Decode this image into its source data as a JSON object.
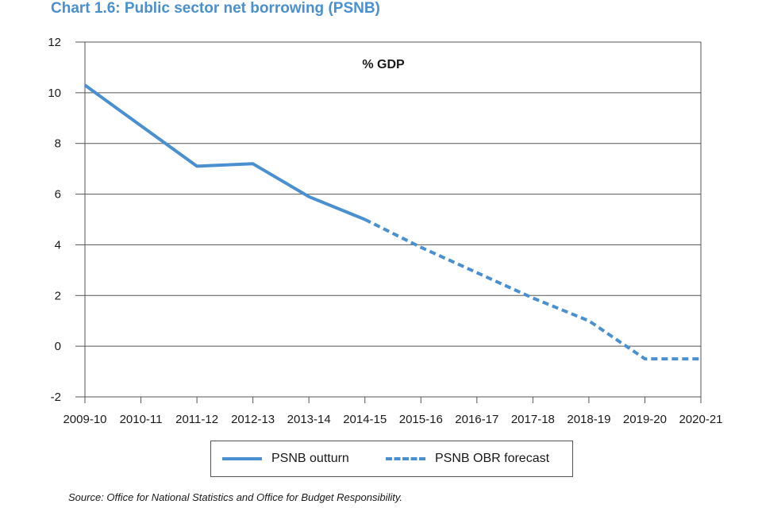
{
  "title": "Chart 1.6: Public sector net borrowing (PSNB)",
  "source": "Source: Office for National Statistics and Office for Budget Responsibility.",
  "colors": {
    "series": "#4a90d0",
    "title": "#4a90d0",
    "grid": "#555555"
  },
  "chart_data": {
    "type": "line",
    "unit_label": "% GDP",
    "categories": [
      "2009-10",
      "2010-11",
      "2011-12",
      "2012-13",
      "2013-14",
      "2014-15",
      "2015-16",
      "2016-17",
      "2017-18",
      "2018-19",
      "2019-20",
      "2020-21"
    ],
    "ylim": [
      -2,
      12
    ],
    "yticks": [
      -2,
      0,
      2,
      4,
      6,
      8,
      10,
      12
    ],
    "ytick_labels": [
      "-2",
      "0",
      "2",
      "4",
      "6",
      "8",
      "10",
      "12"
    ],
    "grid": true,
    "legend_position": "bottom",
    "series": [
      {
        "name": "PSNB outturn",
        "style": "solid",
        "values": [
          10.3,
          8.7,
          7.1,
          7.2,
          5.9,
          5.0,
          null,
          null,
          null,
          null,
          null,
          null
        ]
      },
      {
        "name": "PSNB OBR forecast",
        "style": "dashed",
        "values": [
          null,
          null,
          null,
          null,
          null,
          5.0,
          3.9,
          2.9,
          1.9,
          1.0,
          -0.5,
          -0.5
        ]
      }
    ]
  }
}
